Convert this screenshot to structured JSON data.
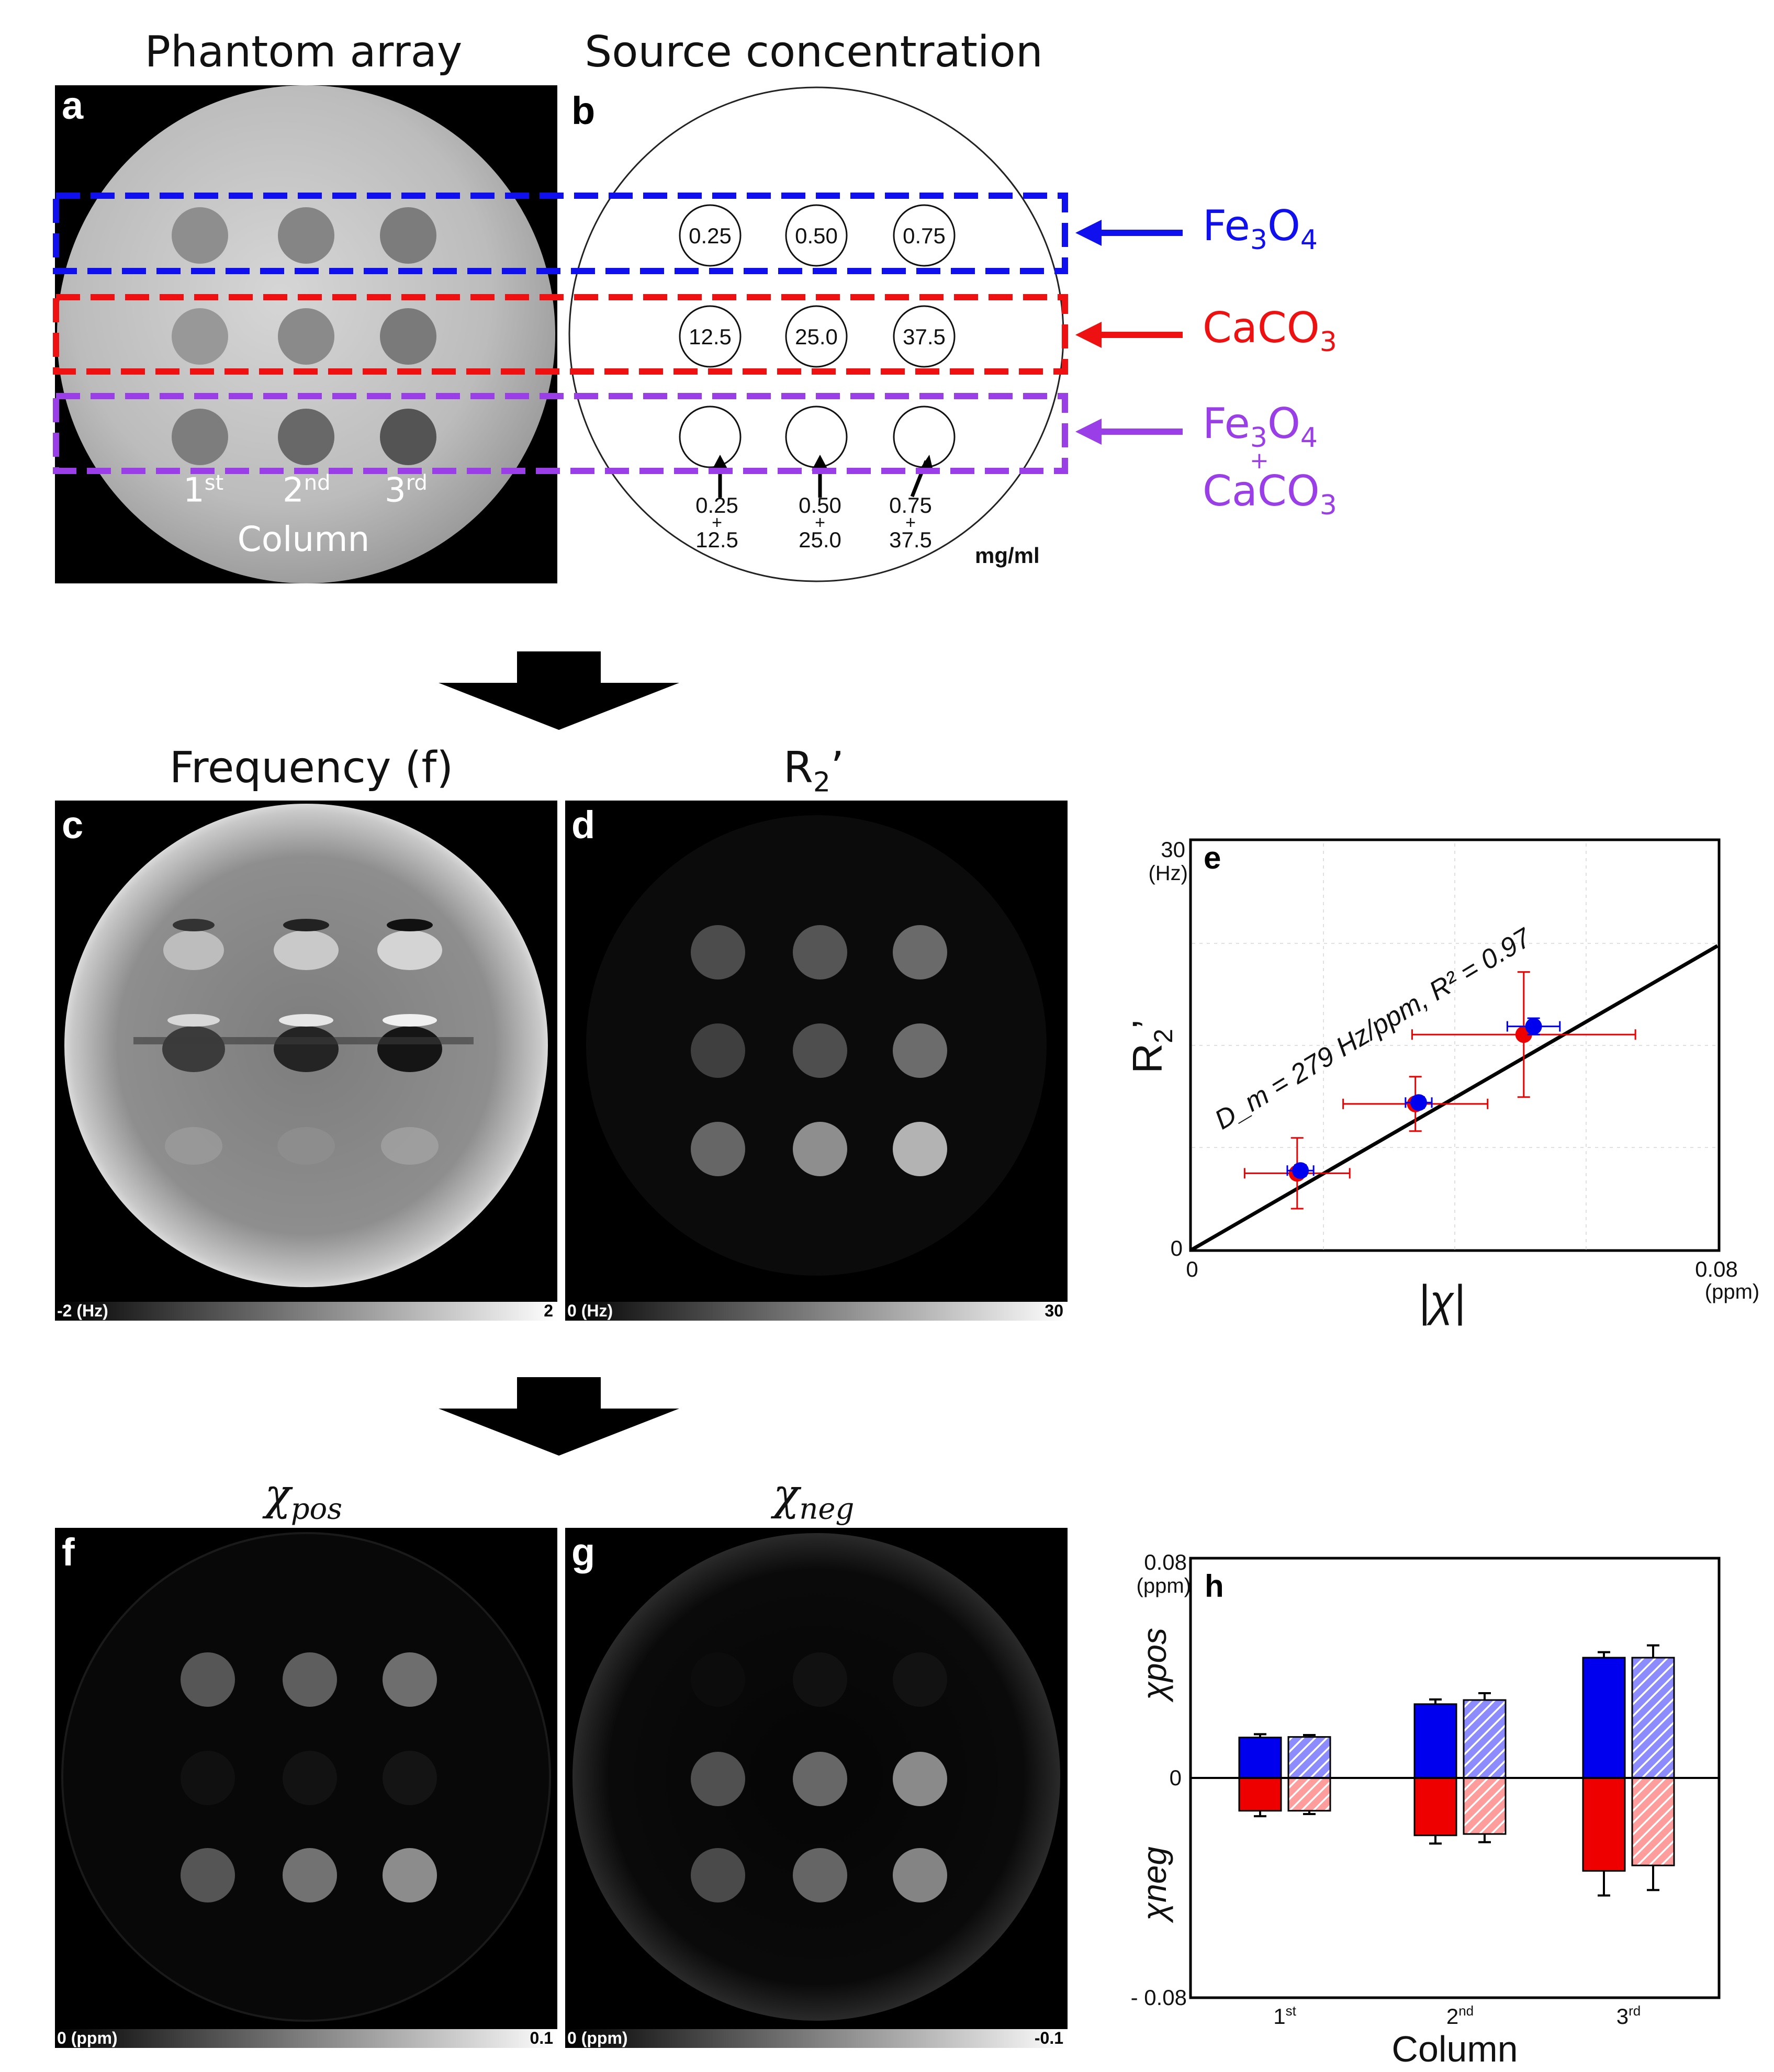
{
  "titles": {
    "a": "Phantom array",
    "b": "Source concentration",
    "c": "Frequency (f)",
    "d_main": "R",
    "d_sub": "2",
    "d_prime": "’",
    "f_chi": "χ",
    "f_sub": "pos",
    "g_chi": "χ",
    "g_sub": "neg"
  },
  "panel_labels": [
    "a",
    "b",
    "c",
    "d",
    "e",
    "f",
    "g",
    "h"
  ],
  "panel_a": {
    "columns": [
      {
        "num": "1",
        "sup": "st"
      },
      {
        "num": "2",
        "sup": "nd"
      },
      {
        "num": "3",
        "sup": "rd"
      }
    ],
    "column_label": "Column"
  },
  "panel_b": {
    "row1": [
      "0.25",
      "0.50",
      "0.75"
    ],
    "row2": [
      "12.5",
      "25.0",
      "37.5"
    ],
    "mix": [
      {
        "top": "0.25",
        "plus": "+",
        "bottom": "12.5"
      },
      {
        "top": "0.50",
        "plus": "+",
        "bottom": "25.0"
      },
      {
        "top": "0.75",
        "plus": "+",
        "bottom": "37.5"
      }
    ],
    "unit": "mg/ml"
  },
  "legend_rows": [
    {
      "name": "fe3o4",
      "color": "#1010ee",
      "parts": [
        "Fe",
        "3",
        "O",
        "4"
      ]
    },
    {
      "name": "caco3",
      "color": "#ee1111",
      "parts": [
        "CaCO",
        "3"
      ]
    },
    {
      "name": "mix",
      "color": "#9a3ee8",
      "parts": [
        "Fe",
        "3",
        "O",
        "4"
      ],
      "plus": "+",
      "parts2": [
        "CaCO",
        "3"
      ]
    }
  ],
  "colorbars": {
    "c": {
      "min": "-2 (Hz)",
      "max": "2"
    },
    "d": {
      "min": "0 (Hz)",
      "max": "30"
    },
    "f": {
      "min": "0 (ppm)",
      "max": "0.1"
    },
    "g": {
      "min": "0 (ppm)",
      "max": "-0.1"
    }
  },
  "colors": {
    "blue": "#0000ee",
    "red": "#ee0000",
    "purple": "#9a3ee8",
    "fit": "#000000"
  },
  "chart_data": [
    {
      "id": "e",
      "type": "scatter",
      "ylabel_main": "R",
      "ylabel_sub": "2",
      "ylabel_prime": "’",
      "xlabel": "|χ|",
      "x_unit": "(ppm)",
      "y_unit": "(Hz)",
      "xlim": [
        0,
        0.08
      ],
      "ylim": [
        0,
        30
      ],
      "x_ticks": [
        "0",
        "0.08"
      ],
      "y_ticks": [
        "0",
        "30"
      ],
      "annotation": "D_m = 279 Hz/ppm, R² = 0.97",
      "fit": {
        "slope": 279,
        "r2": 0.97
      },
      "series": [
        {
          "color": "blue",
          "x": [
            0.0165,
            0.0345,
            0.052
          ],
          "y": [
            5.8,
            10.8,
            16.4
          ],
          "xerr": [
            0.002,
            0.002,
            0.004
          ],
          "yerr": [
            0.4,
            0.4,
            0.6
          ]
        },
        {
          "color": "red",
          "x": [
            0.016,
            0.034,
            0.0505
          ],
          "y": [
            5.6,
            10.7,
            15.8
          ],
          "xerr": [
            0.008,
            0.011,
            0.017
          ],
          "yerr": [
            2.6,
            2.0,
            4.6
          ]
        }
      ]
    },
    {
      "id": "h",
      "type": "bar",
      "categories": [
        "1st",
        "2nd",
        "3rd"
      ],
      "category_labels": [
        {
          "num": "1",
          "sup": "st"
        },
        {
          "num": "2",
          "sup": "nd"
        },
        {
          "num": "3",
          "sup": "rd"
        }
      ],
      "xlabel": "Column",
      "ylabel_top": "χpos",
      "ylabel_bottom": "χneg",
      "y_unit": "(ppm)",
      "y_ticks": [
        "0.08",
        "0",
        "- 0.08"
      ],
      "ylim": [
        -0.08,
        0.08
      ],
      "series": [
        {
          "name": "pos_solid",
          "values": [
            0.0148,
            0.027,
            0.044
          ],
          "err": [
            0.0012,
            0.0017,
            0.002
          ]
        },
        {
          "name": "pos_hatched",
          "values": [
            0.015,
            0.0285,
            0.044
          ],
          "err": [
            0.0007,
            0.0025,
            0.0045
          ]
        },
        {
          "name": "neg_solid",
          "values": [
            -0.012,
            -0.021,
            -0.034
          ],
          "err": [
            0.002,
            0.003,
            0.009
          ]
        },
        {
          "name": "neg_hatched",
          "values": [
            -0.012,
            -0.0205,
            -0.032
          ],
          "err": [
            0.0012,
            0.003,
            0.009
          ]
        }
      ]
    }
  ]
}
